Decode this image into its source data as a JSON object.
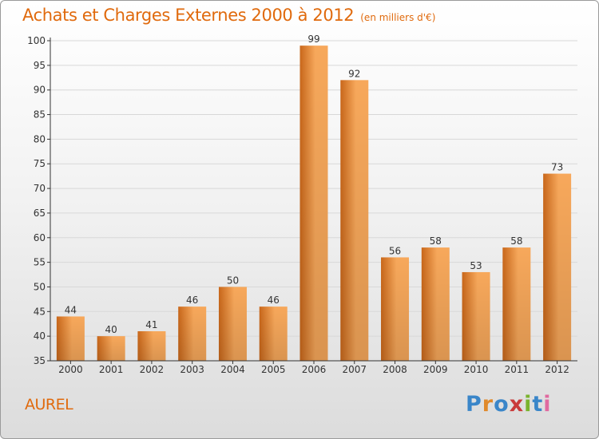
{
  "header": {
    "title": "Achats et Charges Externes 2000 à 2012",
    "unit": "(en milliers d'€)"
  },
  "footer": {
    "commune": "AUREL",
    "logo_text": "Proxiti",
    "logo_colors": [
      "#3a86c9",
      "#e0892a",
      "#3a86c9",
      "#c93a3a",
      "#7ab32e",
      "#3a86c9",
      "#e06aa0"
    ]
  },
  "colors": {
    "title": "#e06a0d",
    "bar_top": "#f7a85b",
    "bar_bottom": "#c9671a",
    "axis": "#333333",
    "grid": "#d8d8d8"
  },
  "chart_data": {
    "type": "bar",
    "categories": [
      "2000",
      "2001",
      "2002",
      "2003",
      "2004",
      "2005",
      "2006",
      "2007",
      "2008",
      "2009",
      "2010",
      "2011",
      "2012"
    ],
    "values": [
      44,
      40,
      41,
      46,
      50,
      46,
      99,
      92,
      56,
      58,
      53,
      58,
      73
    ],
    "title": "Achats et Charges Externes 2000 à 2012",
    "ylim": [
      35,
      100
    ],
    "yticks": [
      35,
      40,
      45,
      50,
      55,
      60,
      65,
      70,
      75,
      80,
      85,
      90,
      95,
      100
    ],
    "grid": true,
    "data_labels": true
  }
}
